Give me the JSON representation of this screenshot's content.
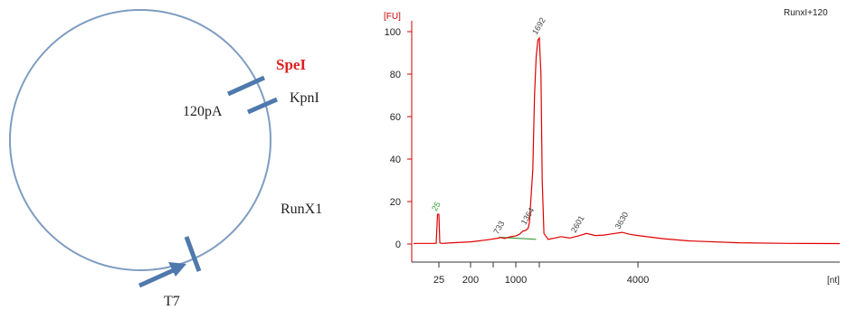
{
  "plasmid": {
    "site_labels": {
      "spe": "SpeI",
      "pa": "120pA",
      "kpn": "KpnI",
      "gene": "RunX1",
      "promoter": "T7"
    },
    "colors": {
      "circle": "#7f9cc1",
      "marker": "#4f79ad",
      "spe": "#e01e1e",
      "text": "#222222"
    }
  },
  "chart_data": {
    "type": "line",
    "title": "RunxI+120",
    "ylabel": "[FU]",
    "xlabel": "[nt]",
    "ylim": [
      -10,
      105
    ],
    "yticks": [
      0,
      20,
      40,
      60,
      80,
      100
    ],
    "xticks": [
      "25",
      "200",
      "1000",
      "4000"
    ],
    "grid": false,
    "colors": {
      "axis": "#cc0000",
      "trace": "#e00000",
      "baseline": "#3aa03a",
      "peak25": "#2d9a2d",
      "tick_text": "#222222",
      "label_text": "#444444"
    },
    "series": [
      {
        "x": [
          25,
          30,
          40,
          60,
          100,
          150,
          200,
          300,
          500,
          600,
          700,
          733,
          800,
          900,
          1000,
          1100,
          1200,
          1300,
          1364,
          1400,
          1500,
          1550,
          1600,
          1650,
          1692,
          1730,
          1760,
          1800,
          1900,
          2000,
          2200,
          2400,
          2600,
          2800,
          3000,
          3200,
          3400,
          3630,
          3800,
          4000,
          4500,
          5000,
          6000,
          7000,
          8000
        ],
        "values": [
          14,
          0.6,
          0.3,
          0.4,
          0.6,
          0.8,
          1.0,
          1.3,
          2.0,
          2.4,
          2.8,
          3.1,
          2.6,
          3.4,
          3.8,
          4.5,
          6.0,
          6.5,
          7.5,
          10,
          35,
          70,
          88,
          96,
          97,
          80,
          30,
          5,
          2.2,
          2.6,
          3.5,
          2.8,
          3.8,
          5.0,
          4.0,
          4.2,
          4.8,
          5.5,
          4.6,
          4.0,
          2.5,
          1.5,
          0.6,
          0.3,
          0.2
        ]
      }
    ],
    "baseline": {
      "x": [
        700,
        1600
      ],
      "values": [
        3.2,
        2.2
      ]
    },
    "peak_labels": [
      {
        "x": 25,
        "y": 14,
        "text": "25",
        "green": true
      },
      {
        "x": 733,
        "y": 3.1,
        "text": "733",
        "green": false
      },
      {
        "x": 1364,
        "y": 7.5,
        "text": "1364",
        "green": false
      },
      {
        "x": 1692,
        "y": 97,
        "text": "1692",
        "green": false
      },
      {
        "x": 2601,
        "y": 3.8,
        "text": "2601",
        "green": false
      },
      {
        "x": 3630,
        "y": 5.5,
        "text": "3630",
        "green": false
      }
    ]
  }
}
